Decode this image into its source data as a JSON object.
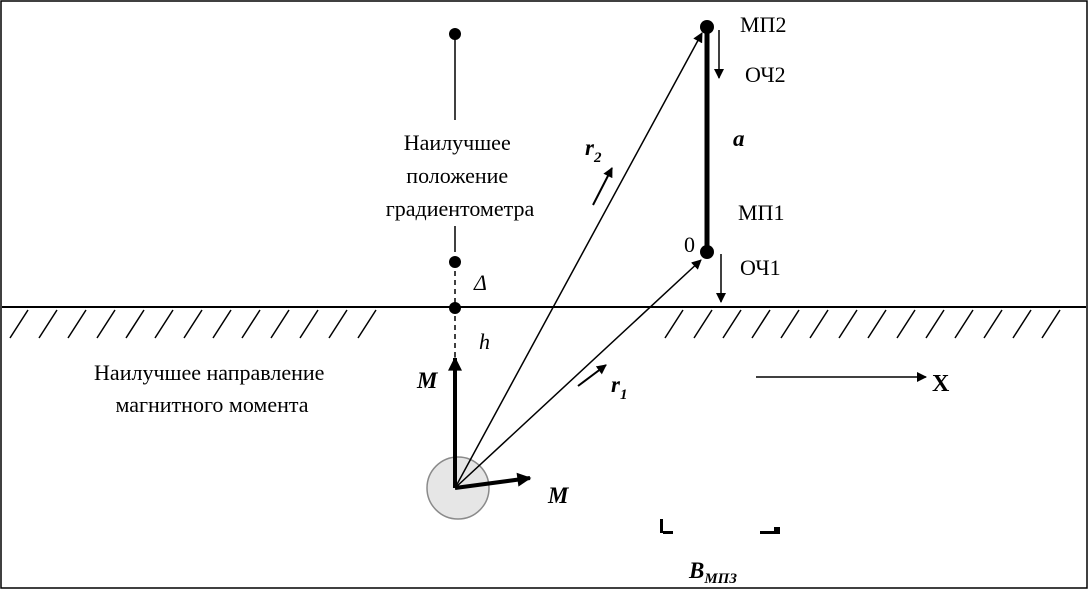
{
  "labels": {
    "mp2": "МП2",
    "och2": "ОЧ2",
    "a": "a",
    "mp1": "МП1",
    "zero": "0",
    "och1": "ОЧ1",
    "delta": "Δ",
    "h": "h",
    "x_axis": "X",
    "r2_main": "r",
    "r2_sub": "2",
    "r1_main": "r",
    "r1_sub": "1",
    "m_vertical": "M",
    "m_horizontal": "M",
    "b_main": "B",
    "b_sub": "МПЗ"
  },
  "best_position_lines": [
    "Наилучшее",
    "положение",
    "градиентометра"
  ],
  "best_direction_lines": [
    "Наилучшее направление",
    "магнитного момента"
  ],
  "colors": {
    "ink": "#000000",
    "source_fill": "#e6e6e6",
    "source_stroke": "#8a8a8a"
  }
}
